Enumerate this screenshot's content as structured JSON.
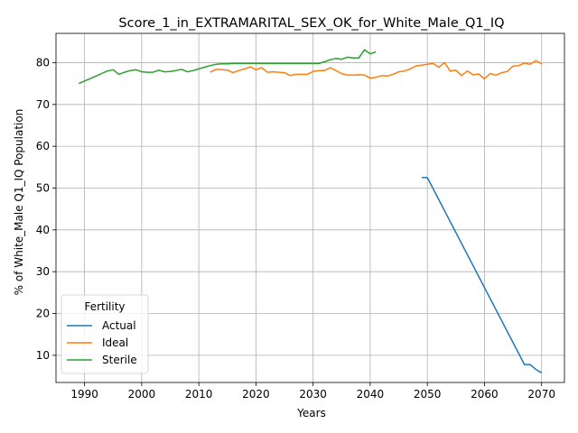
{
  "chart_data": {
    "type": "line",
    "title": "Score_1_in_EXTRAMARITAL_SEX_OK_for_White_Male_Q1_IQ",
    "xlabel": "Years",
    "ylabel": "% of White_Male Q1_IQ Population",
    "xlim": [
      1985,
      2074
    ],
    "ylim": [
      3.5,
      87
    ],
    "xticks": [
      1990,
      2000,
      2010,
      2020,
      2030,
      2040,
      2050,
      2060,
      2070
    ],
    "yticks": [
      10,
      20,
      30,
      40,
      50,
      60,
      70,
      80
    ],
    "grid": true,
    "legend": {
      "title": "Fertility",
      "placement": "lower-left"
    },
    "series": [
      {
        "name": "Actual",
        "color": "#1f77b4",
        "points": [
          [
            2049,
            52.5
          ],
          [
            2050,
            52.5
          ],
          [
            2067,
            7.8
          ],
          [
            2068,
            7.8
          ],
          [
            2069,
            6.6
          ],
          [
            2070,
            5.8
          ]
        ]
      },
      {
        "name": "Ideal",
        "color": "#ff7f0e",
        "points": [
          [
            2012,
            77.7
          ],
          [
            2013,
            78.4
          ],
          [
            2014,
            78.3
          ],
          [
            2015,
            78.2
          ],
          [
            2016,
            77.6
          ],
          [
            2017,
            78.1
          ],
          [
            2018,
            78.5
          ],
          [
            2019,
            79.0
          ],
          [
            2020,
            78.3
          ],
          [
            2021,
            78.8
          ],
          [
            2022,
            77.7
          ],
          [
            2023,
            77.8
          ],
          [
            2024,
            77.7
          ],
          [
            2025,
            77.6
          ],
          [
            2026,
            76.9
          ],
          [
            2027,
            77.2
          ],
          [
            2028,
            77.2
          ],
          [
            2029,
            77.2
          ],
          [
            2030,
            77.9
          ],
          [
            2031,
            78.1
          ],
          [
            2032,
            78.1
          ],
          [
            2033,
            78.8
          ],
          [
            2034,
            78.1
          ],
          [
            2035,
            77.4
          ],
          [
            2036,
            77.0
          ],
          [
            2037,
            77.0
          ],
          [
            2038,
            77.1
          ],
          [
            2039,
            77.0
          ],
          [
            2040,
            76.3
          ],
          [
            2041,
            76.5
          ],
          [
            2042,
            76.9
          ],
          [
            2043,
            76.8
          ],
          [
            2044,
            77.2
          ],
          [
            2045,
            77.8
          ],
          [
            2046,
            78.0
          ],
          [
            2047,
            78.5
          ],
          [
            2048,
            79.2
          ],
          [
            2049,
            79.4
          ],
          [
            2050,
            79.6
          ],
          [
            2051,
            79.8
          ],
          [
            2052,
            78.9
          ],
          [
            2053,
            80.0
          ],
          [
            2054,
            78.0
          ],
          [
            2055,
            78.2
          ],
          [
            2056,
            76.9
          ],
          [
            2057,
            78.0
          ],
          [
            2058,
            77.1
          ],
          [
            2059,
            77.3
          ],
          [
            2060,
            76.1
          ],
          [
            2061,
            77.4
          ],
          [
            2062,
            77.0
          ],
          [
            2063,
            77.6
          ],
          [
            2064,
            77.9
          ],
          [
            2065,
            79.2
          ],
          [
            2066,
            79.3
          ],
          [
            2067,
            79.9
          ],
          [
            2068,
            79.6
          ],
          [
            2069,
            80.5
          ],
          [
            2070,
            79.7
          ]
        ]
      },
      {
        "name": "Sterile",
        "color": "#2ca02c",
        "points": [
          [
            1989,
            75.0
          ],
          [
            1990,
            75.6
          ],
          [
            1991,
            76.2
          ],
          [
            1992,
            76.8
          ],
          [
            1993,
            77.4
          ],
          [
            1994,
            78.0
          ],
          [
            1995,
            78.3
          ],
          [
            1996,
            77.2
          ],
          [
            1997,
            77.7
          ],
          [
            1998,
            78.1
          ],
          [
            1999,
            78.3
          ],
          [
            2000,
            77.8
          ],
          [
            2001,
            77.7
          ],
          [
            2002,
            77.7
          ],
          [
            2003,
            78.2
          ],
          [
            2004,
            77.8
          ],
          [
            2005,
            77.9
          ],
          [
            2006,
            78.1
          ],
          [
            2007,
            78.4
          ],
          [
            2008,
            77.8
          ],
          [
            2009,
            78.1
          ],
          [
            2010,
            78.5
          ],
          [
            2011,
            78.9
          ],
          [
            2012,
            79.3
          ],
          [
            2013,
            79.6
          ],
          [
            2014,
            79.7
          ],
          [
            2015,
            79.7
          ],
          [
            2016,
            79.8
          ],
          [
            2017,
            79.8
          ],
          [
            2018,
            79.8
          ],
          [
            2019,
            79.8
          ],
          [
            2020,
            79.8
          ],
          [
            2021,
            79.8
          ],
          [
            2022,
            79.8
          ],
          [
            2023,
            79.8
          ],
          [
            2024,
            79.8
          ],
          [
            2025,
            79.8
          ],
          [
            2026,
            79.8
          ],
          [
            2027,
            79.8
          ],
          [
            2028,
            79.8
          ],
          [
            2029,
            79.8
          ],
          [
            2030,
            79.8
          ],
          [
            2031,
            79.8
          ],
          [
            2032,
            80.2
          ],
          [
            2033,
            80.7
          ],
          [
            2034,
            81.0
          ],
          [
            2035,
            80.8
          ],
          [
            2036,
            81.3
          ],
          [
            2037,
            81.1
          ],
          [
            2038,
            81.1
          ],
          [
            2039,
            83.1
          ],
          [
            2040,
            82.1
          ],
          [
            2041,
            82.6
          ]
        ]
      }
    ]
  }
}
